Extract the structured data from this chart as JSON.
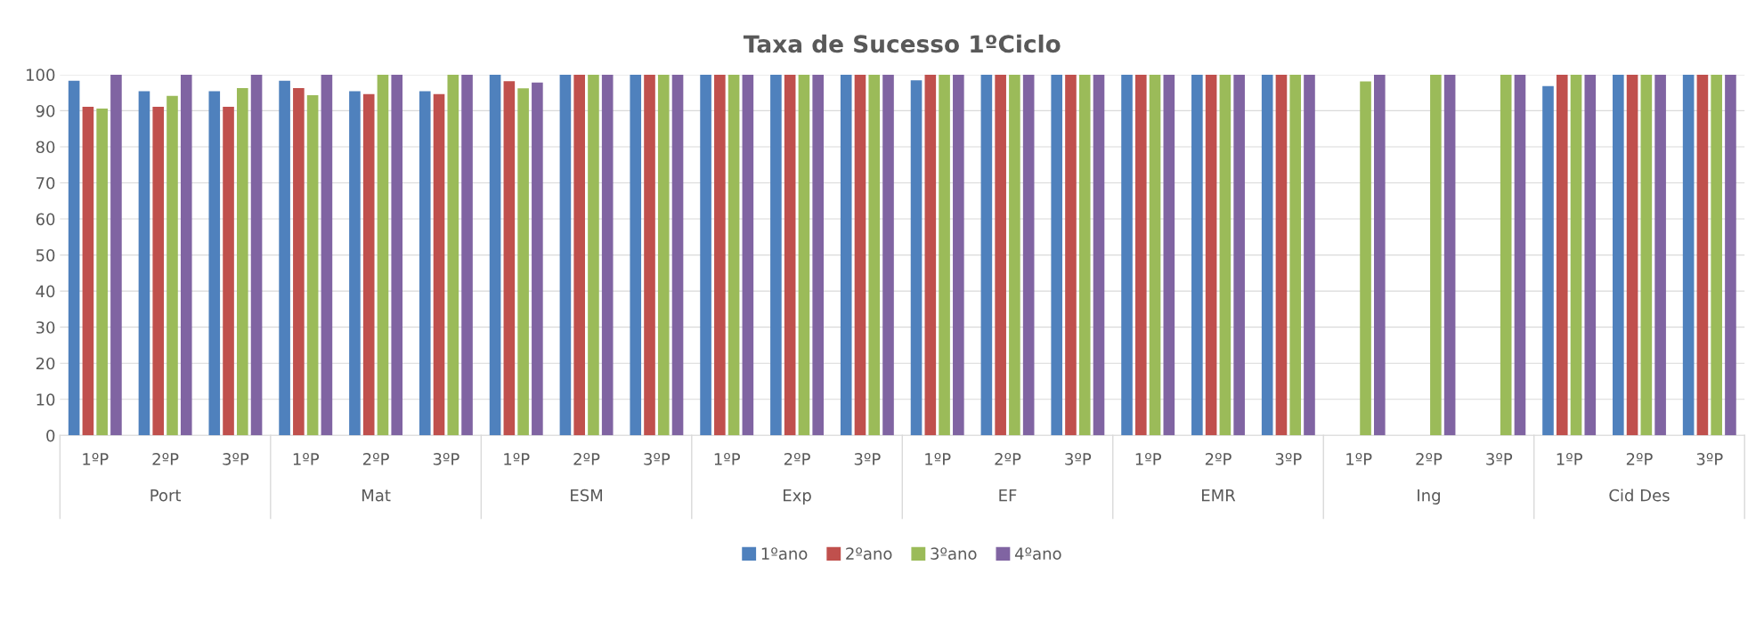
{
  "chart_data": {
    "type": "bar",
    "title": "Taxa de Sucesso 1ºCiclo",
    "categories": [
      "1ºP",
      "2ºP",
      "3ºP",
      "1ºP",
      "2ºP",
      "3ºP",
      "1ºP",
      "2ºP",
      "3ºP",
      "1ºP",
      "2ºP",
      "3ºP",
      "1ºP",
      "2ºP",
      "3ºP",
      "1ºP",
      "2ºP",
      "3ºP",
      "1ºP",
      "2ºP",
      "3ºP",
      "1ºP",
      "2ºP",
      "3ºP"
    ],
    "annotations": [
      "Port",
      "Mat",
      "ESM",
      "Exp",
      "EF",
      "EMR",
      "Ing",
      "Cid Des"
    ],
    "series": [
      {
        "name": "1ºano",
        "color": "#4f81bd",
        "values": [
          98.3,
          95.4,
          95.4,
          98.3,
          95.4,
          95.4,
          100,
          100,
          100,
          100,
          100,
          100,
          98.4,
          100,
          100,
          100,
          100,
          100,
          null,
          null,
          null,
          96.8,
          100,
          100
        ]
      },
      {
        "name": "2ºano",
        "color": "#c0504d",
        "values": [
          91.1,
          91.1,
          91.1,
          96.3,
          94.6,
          94.6,
          98.2,
          100,
          100,
          100,
          100,
          100,
          100,
          100,
          100,
          100,
          100,
          100,
          null,
          null,
          null,
          100,
          100,
          100
        ]
      },
      {
        "name": "3ºano",
        "color": "#9bbb59",
        "values": [
          90.6,
          94.1,
          96.3,
          94.3,
          100,
          100,
          96.2,
          100,
          100,
          100,
          100,
          100,
          100,
          100,
          100,
          100,
          100,
          100,
          98.1,
          100,
          100,
          100,
          100,
          100
        ]
      },
      {
        "name": "4ºano",
        "color": "#8064a2",
        "values": [
          100,
          100,
          100,
          100,
          100,
          100,
          97.8,
          100,
          100,
          100,
          100,
          100,
          100,
          100,
          100,
          100,
          100,
          100,
          100,
          100,
          100,
          100,
          100,
          100
        ]
      }
    ],
    "ylim": [
      0,
      100
    ],
    "yticks": [
      0,
      10,
      20,
      30,
      40,
      50,
      60,
      70,
      80,
      90,
      100
    ],
    "grid": "y",
    "legend": "bottom"
  }
}
